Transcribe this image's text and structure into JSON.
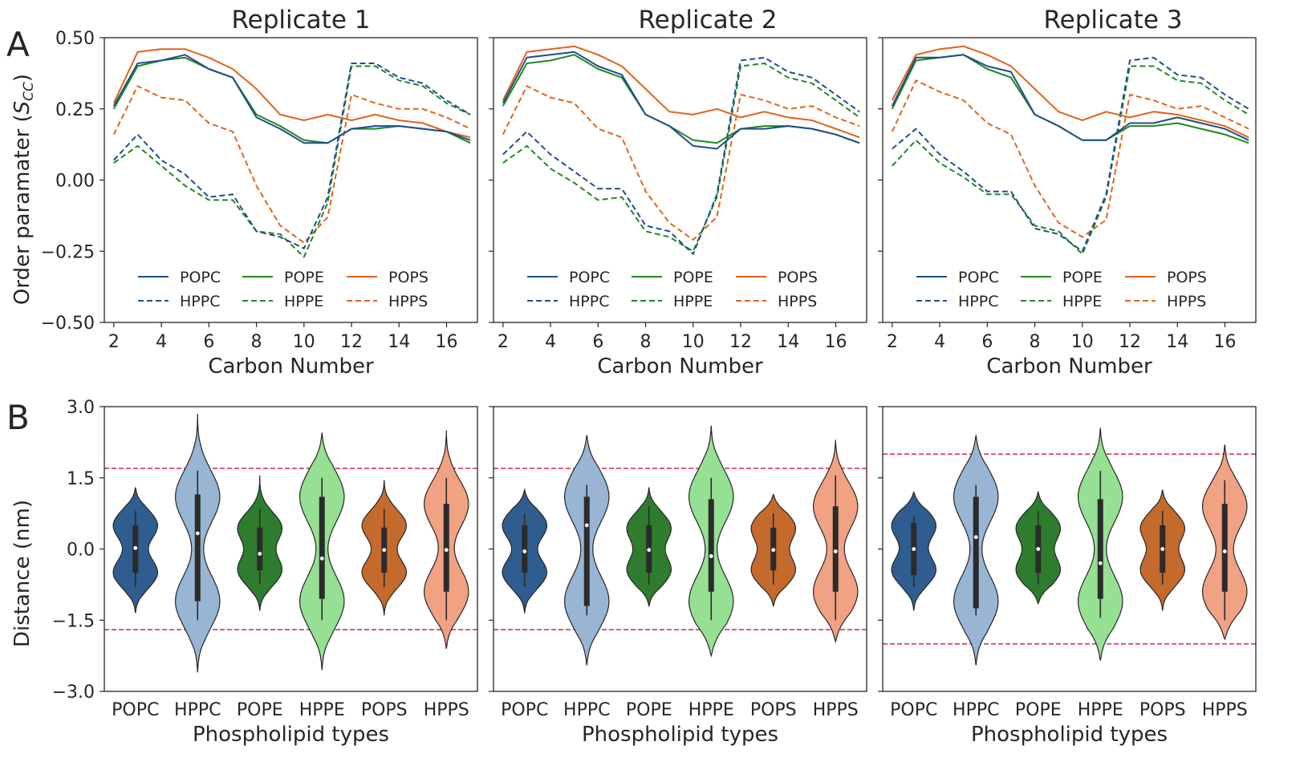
{
  "panel_labels": [
    "A",
    "B"
  ],
  "colors": {
    "POPC": "#1f4e8c",
    "POPE": "#1f8a1f",
    "POPS": "#e0641a",
    "violin_POPC": "#305d8f",
    "violin_HPPC": "#98b5d4",
    "violin_POPE": "#2e7d2e",
    "violin_HPPE": "#95e093",
    "violin_POPS": "#c46a2d",
    "violin_HPPS": "#f0a283",
    "threshold": "#d6336c"
  },
  "chart_data": [
    {
      "type": "line",
      "id": "A1",
      "title": "Replicate 1",
      "xlabel": "Carbon Number",
      "ylabel": "Order paramater",
      "xlim": [
        1.6,
        17.3
      ],
      "ylim": [
        -0.5,
        0.5
      ],
      "xticks": [
        "2",
        "4",
        "6",
        "8",
        "10",
        "12",
        "14",
        "16"
      ],
      "yticks": [
        "0.50",
        "0.25",
        "0.00",
        "−0.25",
        "−0.50"
      ],
      "x": [
        2,
        3,
        4,
        5,
        6,
        7,
        8,
        9,
        10,
        11,
        12,
        13,
        14,
        15,
        16,
        17
      ],
      "series": [
        {
          "name": "POPC",
          "style": "solid",
          "color": "#1f4e8c",
          "values": [
            0.26,
            0.41,
            0.42,
            0.44,
            0.39,
            0.36,
            0.22,
            0.18,
            0.13,
            0.13,
            0.18,
            0.19,
            0.19,
            0.18,
            0.17,
            0.14
          ]
        },
        {
          "name": "POPE",
          "style": "solid",
          "color": "#1f8a1f",
          "values": [
            0.25,
            0.4,
            0.42,
            0.43,
            0.39,
            0.36,
            0.23,
            0.19,
            0.14,
            0.13,
            0.18,
            0.18,
            0.19,
            0.18,
            0.17,
            0.13
          ]
        },
        {
          "name": "POPS",
          "style": "solid",
          "color": "#e0641a",
          "values": [
            0.27,
            0.45,
            0.46,
            0.46,
            0.43,
            0.39,
            0.32,
            0.23,
            0.21,
            0.23,
            0.21,
            0.23,
            0.21,
            0.2,
            0.17,
            0.15
          ]
        },
        {
          "name": "HPPC",
          "style": "dashed",
          "color": "#1f4e8c",
          "values": [
            0.07,
            0.16,
            0.07,
            0.02,
            -0.06,
            -0.05,
            -0.18,
            -0.2,
            -0.24,
            -0.06,
            0.41,
            0.41,
            0.36,
            0.34,
            0.28,
            0.23
          ]
        },
        {
          "name": "HPPE",
          "style": "dashed",
          "color": "#1f8a1f",
          "values": [
            0.06,
            0.12,
            0.05,
            -0.02,
            -0.07,
            -0.07,
            -0.18,
            -0.19,
            -0.27,
            -0.08,
            0.4,
            0.4,
            0.35,
            0.33,
            0.27,
            0.23
          ]
        },
        {
          "name": "HPPS",
          "style": "dashed",
          "color": "#e0641a",
          "values": [
            0.16,
            0.33,
            0.29,
            0.28,
            0.2,
            0.17,
            -0.02,
            -0.16,
            -0.22,
            -0.13,
            0.3,
            0.27,
            0.25,
            0.25,
            0.22,
            0.18
          ]
        }
      ]
    },
    {
      "type": "line",
      "id": "A2",
      "title": "Replicate 2",
      "xlabel": "Carbon Number",
      "xlim": [
        1.6,
        17.3
      ],
      "ylim": [
        -0.5,
        0.5
      ],
      "xticks": [
        "2",
        "4",
        "6",
        "8",
        "10",
        "12",
        "14",
        "16"
      ],
      "x": [
        2,
        3,
        4,
        5,
        6,
        7,
        8,
        9,
        10,
        11,
        12,
        13,
        14,
        15,
        16,
        17
      ],
      "series": [
        {
          "name": "POPC",
          "style": "solid",
          "color": "#1f4e8c",
          "values": [
            0.27,
            0.43,
            0.44,
            0.45,
            0.4,
            0.37,
            0.23,
            0.19,
            0.12,
            0.11,
            0.18,
            0.18,
            0.19,
            0.18,
            0.16,
            0.13
          ]
        },
        {
          "name": "POPE",
          "style": "solid",
          "color": "#1f8a1f",
          "values": [
            0.26,
            0.41,
            0.42,
            0.44,
            0.39,
            0.36,
            0.23,
            0.19,
            0.14,
            0.13,
            0.18,
            0.19,
            0.19,
            0.18,
            0.16,
            0.13
          ]
        },
        {
          "name": "POPS",
          "style": "solid",
          "color": "#e0641a",
          "values": [
            0.28,
            0.45,
            0.46,
            0.47,
            0.44,
            0.4,
            0.32,
            0.24,
            0.23,
            0.25,
            0.22,
            0.24,
            0.22,
            0.21,
            0.18,
            0.15
          ]
        },
        {
          "name": "HPPC",
          "style": "dashed",
          "color": "#1f4e8c",
          "values": [
            0.09,
            0.17,
            0.09,
            0.03,
            -0.03,
            -0.03,
            -0.16,
            -0.18,
            -0.26,
            -0.05,
            0.42,
            0.43,
            0.38,
            0.36,
            0.3,
            0.24
          ]
        },
        {
          "name": "HPPE",
          "style": "dashed",
          "color": "#1f8a1f",
          "values": [
            0.06,
            0.12,
            0.04,
            -0.01,
            -0.07,
            -0.06,
            -0.18,
            -0.2,
            -0.25,
            -0.06,
            0.4,
            0.41,
            0.36,
            0.34,
            0.28,
            0.22
          ]
        },
        {
          "name": "HPPS",
          "style": "dashed",
          "color": "#e0641a",
          "values": [
            0.16,
            0.33,
            0.29,
            0.27,
            0.18,
            0.15,
            -0.04,
            -0.15,
            -0.21,
            -0.13,
            0.3,
            0.28,
            0.25,
            0.26,
            0.22,
            0.19
          ]
        }
      ]
    },
    {
      "type": "line",
      "id": "A3",
      "title": "Replicate 3",
      "xlabel": "Carbon Number",
      "xlim": [
        1.6,
        17.3
      ],
      "ylim": [
        -0.5,
        0.5
      ],
      "xticks": [
        "2",
        "4",
        "6",
        "8",
        "10",
        "12",
        "14",
        "16"
      ],
      "x": [
        2,
        3,
        4,
        5,
        6,
        7,
        8,
        9,
        10,
        11,
        12,
        13,
        14,
        15,
        16,
        17
      ],
      "series": [
        {
          "name": "POPC",
          "style": "solid",
          "color": "#1f4e8c",
          "values": [
            0.26,
            0.43,
            0.43,
            0.44,
            0.4,
            0.38,
            0.23,
            0.19,
            0.14,
            0.14,
            0.2,
            0.2,
            0.22,
            0.2,
            0.18,
            0.14
          ]
        },
        {
          "name": "POPE",
          "style": "solid",
          "color": "#1f8a1f",
          "values": [
            0.25,
            0.42,
            0.43,
            0.44,
            0.39,
            0.36,
            0.23,
            0.19,
            0.14,
            0.14,
            0.19,
            0.19,
            0.2,
            0.18,
            0.16,
            0.13
          ]
        },
        {
          "name": "POPS",
          "style": "solid",
          "color": "#e0641a",
          "values": [
            0.28,
            0.44,
            0.46,
            0.47,
            0.44,
            0.4,
            0.32,
            0.24,
            0.21,
            0.24,
            0.22,
            0.24,
            0.23,
            0.21,
            0.19,
            0.15
          ]
        },
        {
          "name": "HPPC",
          "style": "dashed",
          "color": "#1f4e8c",
          "values": [
            0.11,
            0.18,
            0.09,
            0.03,
            -0.04,
            -0.04,
            -0.17,
            -0.19,
            -0.25,
            -0.05,
            0.42,
            0.43,
            0.37,
            0.36,
            0.3,
            0.25
          ]
        },
        {
          "name": "HPPE",
          "style": "dashed",
          "color": "#1f8a1f",
          "values": [
            0.05,
            0.14,
            0.06,
            0.01,
            -0.05,
            -0.05,
            -0.16,
            -0.18,
            -0.26,
            -0.06,
            0.4,
            0.4,
            0.35,
            0.34,
            0.28,
            0.23
          ]
        },
        {
          "name": "HPPS",
          "style": "dashed",
          "color": "#e0641a",
          "values": [
            0.17,
            0.35,
            0.31,
            0.28,
            0.2,
            0.16,
            -0.02,
            -0.15,
            -0.2,
            -0.14,
            0.3,
            0.28,
            0.25,
            0.26,
            0.22,
            0.18
          ]
        }
      ]
    },
    {
      "type": "violin",
      "id": "B1",
      "xlabel": "Phospholipid types",
      "ylabel": "Distance (nm)",
      "ylim": [
        -3.0,
        3.0
      ],
      "yticks": [
        "3.0",
        "1.5",
        "0.0",
        "−1.5",
        "−3.0"
      ],
      "categories": [
        "POPC",
        "HPPC",
        "POPE",
        "HPPE",
        "POPS",
        "HPPS"
      ],
      "threshold": 1.7,
      "violins": [
        {
          "name": "POPC",
          "min": -1.35,
          "max": 1.3,
          "q1": -0.5,
          "median": 0.02,
          "q3": 0.5,
          "wlo": -0.8,
          "whi": 0.8,
          "peaks": [
            -0.5,
            0.5
          ],
          "spread": 0.32,
          "width": 0.85
        },
        {
          "name": "HPPC",
          "min": -2.6,
          "max": 2.85,
          "q1": -1.1,
          "median": 0.33,
          "q3": 1.15,
          "wlo": -1.5,
          "whi": 1.65,
          "peaks": [
            -1.1,
            1.1
          ],
          "spread": 0.55,
          "width": 0.85
        },
        {
          "name": "POPE",
          "min": -1.3,
          "max": 1.55,
          "q1": -0.45,
          "median": -0.1,
          "q3": 0.45,
          "wlo": -0.75,
          "whi": 0.85,
          "peaks": [
            -0.45,
            0.45
          ],
          "spread": 0.32,
          "width": 0.85
        },
        {
          "name": "HPPE",
          "min": -2.55,
          "max": 2.45,
          "q1": -1.05,
          "median": -0.2,
          "q3": 1.1,
          "wlo": -1.5,
          "whi": 1.5,
          "peaks": [
            -1.1,
            1.1
          ],
          "spread": 0.55,
          "width": 0.85
        },
        {
          "name": "POPS",
          "min": -1.4,
          "max": 1.45,
          "q1": -0.5,
          "median": -0.02,
          "q3": 0.45,
          "wlo": -0.8,
          "whi": 0.85,
          "peaks": [
            -0.5,
            0.5
          ],
          "spread": 0.32,
          "width": 0.85
        },
        {
          "name": "HPPS",
          "min": -2.1,
          "max": 2.5,
          "q1": -0.9,
          "median": -0.02,
          "q3": 0.95,
          "wlo": -1.5,
          "whi": 1.5,
          "peaks": [
            -0.9,
            0.95
          ],
          "spread": 0.5,
          "width": 0.85
        }
      ]
    },
    {
      "type": "violin",
      "id": "B2",
      "xlabel": "Phospholipid types",
      "ylim": [
        -3.0,
        3.0
      ],
      "categories": [
        "POPC",
        "HPPC",
        "POPE",
        "HPPE",
        "POPS",
        "HPPS"
      ],
      "threshold": 1.7,
      "violins": [
        {
          "name": "POPC",
          "min": -1.35,
          "max": 1.25,
          "q1": -0.5,
          "median": -0.05,
          "q3": 0.5,
          "wlo": -0.8,
          "whi": 0.75,
          "peaks": [
            -0.5,
            0.5
          ],
          "spread": 0.32,
          "width": 0.85
        },
        {
          "name": "HPPC",
          "min": -2.45,
          "max": 2.4,
          "q1": -1.2,
          "median": 0.5,
          "q3": 1.1,
          "wlo": -1.4,
          "whi": 1.35,
          "peaks": [
            -1.1,
            1.1
          ],
          "spread": 0.55,
          "width": 0.85
        },
        {
          "name": "POPE",
          "min": -1.2,
          "max": 1.3,
          "q1": -0.5,
          "median": -0.02,
          "q3": 0.5,
          "wlo": -0.75,
          "whi": 0.9,
          "peaks": [
            -0.45,
            0.45
          ],
          "spread": 0.32,
          "width": 0.85
        },
        {
          "name": "HPPE",
          "min": -2.25,
          "max": 2.6,
          "q1": -0.9,
          "median": -0.15,
          "q3": 1.05,
          "wlo": -1.5,
          "whi": 1.5,
          "peaks": [
            -1.1,
            1.1
          ],
          "spread": 0.55,
          "width": 0.85
        },
        {
          "name": "POPS",
          "min": -1.2,
          "max": 1.15,
          "q1": -0.45,
          "median": -0.02,
          "q3": 0.45,
          "wlo": -0.75,
          "whi": 0.75,
          "peaks": [
            -0.45,
            0.45
          ],
          "spread": 0.32,
          "width": 0.85
        },
        {
          "name": "HPPS",
          "min": -1.95,
          "max": 2.3,
          "q1": -0.9,
          "median": -0.05,
          "q3": 0.9,
          "wlo": -1.5,
          "whi": 1.55,
          "peaks": [
            -0.9,
            0.9
          ],
          "spread": 0.5,
          "width": 0.85
        }
      ]
    },
    {
      "type": "violin",
      "id": "B3",
      "xlabel": "Phospholipid types",
      "ylim": [
        -3.0,
        3.0
      ],
      "categories": [
        "POPC",
        "HPPC",
        "POPE",
        "HPPE",
        "POPS",
        "HPPS"
      ],
      "threshold": 2.0,
      "violins": [
        {
          "name": "POPC",
          "min": -1.3,
          "max": 1.2,
          "q1": -0.55,
          "median": 0.0,
          "q3": 0.55,
          "wlo": -0.8,
          "whi": 0.7,
          "peaks": [
            -0.45,
            0.5
          ],
          "spread": 0.32,
          "width": 0.85
        },
        {
          "name": "HPPC",
          "min": -2.45,
          "max": 2.4,
          "q1": -1.25,
          "median": 0.25,
          "q3": 1.1,
          "wlo": -1.4,
          "whi": 1.35,
          "peaks": [
            -1.1,
            1.1
          ],
          "spread": 0.55,
          "width": 0.85
        },
        {
          "name": "POPE",
          "min": -1.15,
          "max": 1.2,
          "q1": -0.5,
          "median": 0.0,
          "q3": 0.5,
          "wlo": -0.75,
          "whi": 0.8,
          "peaks": [
            -0.45,
            0.45
          ],
          "spread": 0.32,
          "width": 0.85
        },
        {
          "name": "HPPE",
          "min": -2.35,
          "max": 2.55,
          "q1": -1.05,
          "median": -0.3,
          "q3": 1.05,
          "wlo": -1.45,
          "whi": 1.65,
          "peaks": [
            -1.1,
            1.1
          ],
          "spread": 0.55,
          "width": 0.85
        },
        {
          "name": "POPS",
          "min": -1.3,
          "max": 1.25,
          "q1": -0.5,
          "median": 0.0,
          "q3": 0.5,
          "wlo": -0.75,
          "whi": 0.8,
          "peaks": [
            -0.45,
            0.45
          ],
          "spread": 0.32,
          "width": 0.85
        },
        {
          "name": "HPPS",
          "min": -1.9,
          "max": 2.2,
          "q1": -0.9,
          "median": -0.05,
          "q3": 0.95,
          "wlo": -1.5,
          "whi": 1.45,
          "peaks": [
            -0.9,
            0.9
          ],
          "spread": 0.5,
          "width": 0.85
        }
      ]
    }
  ]
}
